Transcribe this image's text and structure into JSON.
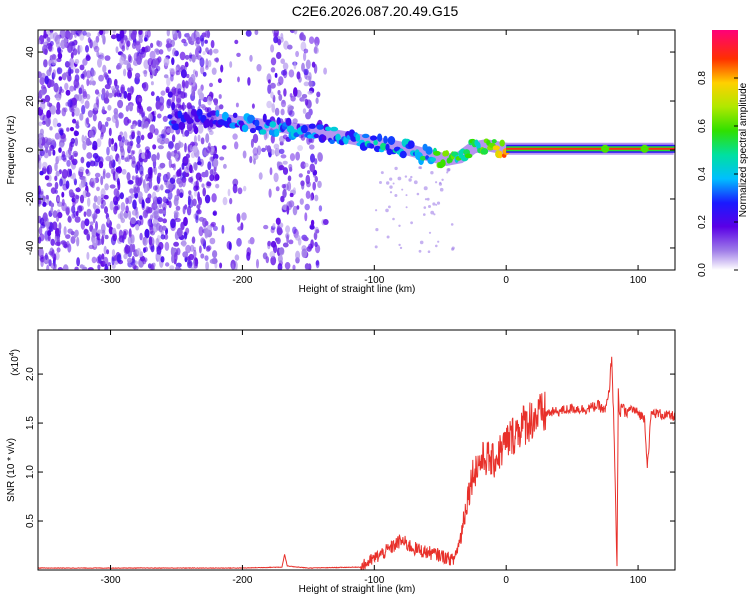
{
  "title": "C2E6.2026.087.20.49.G15",
  "chart_data": [
    {
      "type": "heatmap",
      "xlabel": "Height of straight line (km)",
      "ylabel": "Frequency (Hz)",
      "xlim": [
        -355,
        128
      ],
      "ylim": [
        -49,
        49
      ],
      "x_ticks": [
        -300,
        -200,
        -100,
        0,
        100
      ],
      "y_ticks": [
        -40,
        -20,
        0,
        20,
        40
      ],
      "colorbar": {
        "label": "Normalized spectral amplitude",
        "range": [
          0,
          1
        ],
        "ticks": [
          "0.0",
          "0.2",
          "0.4",
          "0.6",
          "0.8"
        ],
        "tick_values": [
          0,
          0.2,
          0.4,
          0.6,
          0.8
        ]
      },
      "ridge": {
        "x": [
          -255,
          -240,
          -210,
          -180,
          -150,
          -120,
          -100,
          -80,
          -60,
          -45,
          -35,
          -25,
          -15,
          -5,
          0,
          40,
          80,
          120,
          128
        ],
        "y": [
          12,
          13,
          12,
          10,
          8,
          5,
          3,
          1,
          -2,
          -4,
          -3,
          1,
          2,
          1,
          0.5,
          0.5,
          0.5,
          0.5,
          0.5
        ],
        "amplitude": [
          0.35,
          0.3,
          0.4,
          0.45,
          0.4,
          0.45,
          0.5,
          0.5,
          0.55,
          0.85,
          0.6,
          0.65,
          0.7,
          0.8,
          0.95,
          0.95,
          0.95,
          0.95,
          0.95
        ]
      },
      "noise_region_x": [
        -355,
        -135
      ]
    },
    {
      "type": "line",
      "xlabel": "Height of straight line (km)",
      "ylabel": "SNR (10 * v/v)",
      "y_multiplier": "(x10",
      "y_multiplier_exp": "4",
      "y_multiplier_close": ")",
      "xlim": [
        -355,
        128
      ],
      "ylim": [
        0,
        2.45
      ],
      "x_ticks": [
        -300,
        -200,
        -100,
        0,
        100
      ],
      "y_ticks": [
        "0.5",
        "1.0",
        "1.5",
        "2.0"
      ],
      "y_tick_values": [
        0.5,
        1.0,
        1.5,
        2.0
      ],
      "color": "#e8302a",
      "series": [
        {
          "x": [
            -355,
            -200,
            -170,
            -168,
            -166,
            -150,
            -110,
            -100,
            -90,
            -80,
            -70,
            -60,
            -50,
            -40,
            -35,
            -30,
            -25,
            -20,
            -15,
            -10,
            -5,
            0,
            10,
            20,
            30,
            40,
            50,
            60,
            70,
            75,
            78,
            80,
            82,
            84,
            85,
            86,
            88,
            90,
            95,
            100,
            105,
            107,
            110,
            115,
            120,
            128
          ],
          "y": [
            0.02,
            0.02,
            0.03,
            0.16,
            0.04,
            0.02,
            0.03,
            0.12,
            0.2,
            0.3,
            0.22,
            0.18,
            0.15,
            0.1,
            0.3,
            0.7,
            1.0,
            1.1,
            1.15,
            1.1,
            1.2,
            1.3,
            1.45,
            1.55,
            1.6,
            1.62,
            1.65,
            1.64,
            1.68,
            1.62,
            1.8,
            2.2,
            1.3,
            0.03,
            1.8,
            1.55,
            1.7,
            1.6,
            1.65,
            1.6,
            1.55,
            1.05,
            1.6,
            1.6,
            1.58,
            1.57
          ]
        }
      ]
    }
  ]
}
